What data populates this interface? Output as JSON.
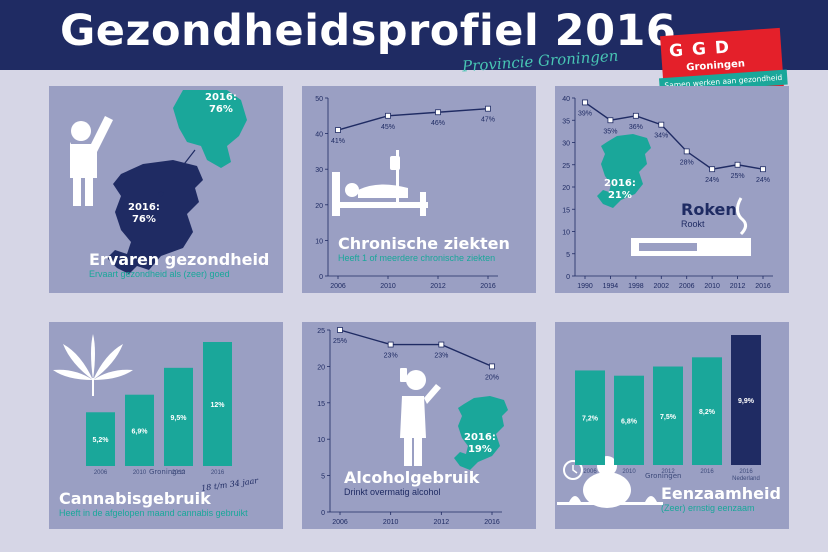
{
  "header": {
    "title": "Gezondheidsprofiel 2016",
    "subtitle": "Provincie Groningen"
  },
  "logo": {
    "letters": "GGD",
    "region": "Groningen",
    "tagline": "Samen werken aan gezondheid"
  },
  "colors": {
    "header": "#1f2b63",
    "panel": "#9a9fc3",
    "teal": "#1aa79a",
    "navy": "#1f2b63",
    "background": "#d6d6e6"
  },
  "panels": {
    "ervaren": {
      "title": "Ervaren gezondheid",
      "subtitle": "Ervaart gezondheid als (zeer) goed",
      "province_label": "2016:\n76%",
      "nl_label": "2016:\n76%"
    },
    "chronisch": {
      "title": "Chronische ziekten",
      "subtitle": "Heeft 1 of meerdere chronische ziekten"
    },
    "roken": {
      "title": "Roken",
      "subtitle": "Rookt",
      "map_label": "2016:\n21%"
    },
    "cannabis": {
      "title": "Cannabisgebruik",
      "subtitle": "Heeft in de afgelopen maand cannabis gebruikt",
      "note": "18 t/m 34 jaar",
      "group_label": "Groningen"
    },
    "alcohol": {
      "title": "Alcoholgebruik",
      "subtitle": "Drinkt overmatig alcohol",
      "map_label": "2016:\n19%"
    },
    "eenzaam": {
      "title": "Eenzaamheid",
      "subtitle": "(Zeer) ernstig eenzaam",
      "group_label": "Groningen"
    }
  },
  "chart_data": [
    {
      "id": "chronisch",
      "type": "line",
      "title": "Chronische ziekten",
      "x": [
        "2006",
        "2010",
        "2012",
        "2016"
      ],
      "values": [
        41,
        45,
        46,
        47
      ],
      "labels": [
        "41%",
        "45%",
        "46%",
        "47%"
      ],
      "ylim": [
        0,
        50
      ],
      "yticks": [
        0,
        10,
        20,
        30,
        40,
        50
      ],
      "grid": false
    },
    {
      "id": "roken",
      "type": "line",
      "title": "Roken",
      "x": [
        "1990",
        "1994",
        "1998",
        "2002",
        "2006",
        "2010",
        "2012",
        "2016"
      ],
      "values": [
        39,
        35,
        36,
        34,
        28,
        24,
        25,
        24
      ],
      "labels": [
        "39%",
        "35%",
        "36%",
        "34%",
        "28%",
        "24%",
        "25%",
        "24%"
      ],
      "ylim": [
        0,
        40
      ],
      "yticks": [
        0,
        5,
        10,
        15,
        20,
        25,
        30,
        35,
        40
      ],
      "grid": false
    },
    {
      "id": "cannabis",
      "type": "bar",
      "title": "Cannabisgebruik",
      "categories": [
        "2006",
        "2010",
        "2012",
        "2016"
      ],
      "values": [
        5.2,
        6.9,
        9.5,
        12
      ],
      "labels": [
        "5,2%",
        "6,9%",
        "9,5%",
        "12%"
      ]
    },
    {
      "id": "alcohol",
      "type": "line",
      "title": "Alcoholgebruik",
      "x": [
        "2006",
        "2010",
        "2012",
        "2016"
      ],
      "values": [
        25,
        23,
        23,
        20
      ],
      "labels": [
        "25%",
        "23%",
        "23%",
        "20%"
      ],
      "ylim": [
        0,
        25
      ],
      "yticks": [
        0,
        5,
        10,
        15,
        20,
        25
      ],
      "grid": false
    },
    {
      "id": "eenzaam",
      "type": "bar",
      "title": "Eenzaamheid",
      "categories": [
        "2006",
        "2010",
        "2012",
        "2016",
        "2016"
      ],
      "values": [
        7.2,
        6.8,
        7.5,
        8.2,
        9.9
      ],
      "labels": [
        "7,2%",
        "6,8%",
        "7,5%",
        "8,2%",
        "9,9%"
      ],
      "extra_label": "Nederland"
    }
  ]
}
